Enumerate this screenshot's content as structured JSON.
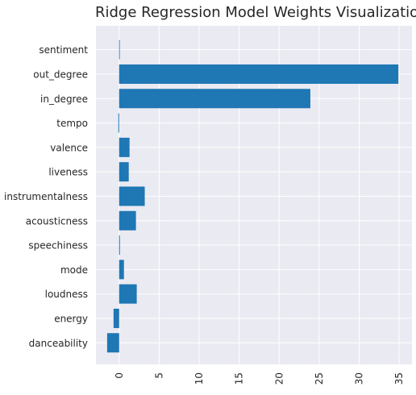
{
  "chart_data": {
    "type": "bar",
    "orientation": "horizontal",
    "title": "Ridge Regression Model Weights Visualization",
    "xlabel": "",
    "ylabel": "",
    "categories": [
      "danceability",
      "energy",
      "loudness",
      "mode",
      "speechiness",
      "acousticness",
      "instrumentalness",
      "liveness",
      "valence",
      "tempo",
      "in_degree",
      "out_degree",
      "sentiment"
    ],
    "values": [
      -1.5,
      -0.7,
      2.2,
      0.6,
      0.1,
      2.1,
      3.2,
      1.2,
      1.3,
      -0.1,
      23.9,
      34.9,
      0.0
    ],
    "xlim": [
      -2.9,
      36.6
    ],
    "xticks": [
      0,
      5,
      10,
      15,
      20,
      25,
      30,
      35
    ],
    "grid": true,
    "bar_color": "#1f77b4",
    "background_color": "#eaeaf2",
    "grid_color": "#ffffff"
  }
}
